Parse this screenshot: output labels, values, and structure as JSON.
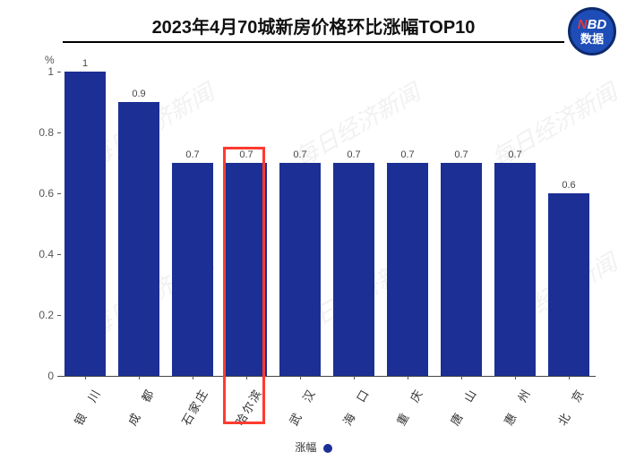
{
  "title": "2023年4月70城新房价格环比涨幅TOP10",
  "title_fontsize": 20,
  "badge": {
    "top_n": "N",
    "top_bd": "BD",
    "bottom": "数据",
    "bg": "#1e4db7",
    "border": "#0d2a6e"
  },
  "watermark_text": "每日经济新闻",
  "chart": {
    "type": "bar",
    "y_unit": "%",
    "ylim": [
      0,
      1
    ],
    "ytick_step": 0.2,
    "yticks": [
      "0",
      "0.2",
      "0.4",
      "0.6",
      "0.8",
      "1"
    ],
    "categories": [
      "银　川",
      "成　都",
      "石家庄",
      "哈尔滨",
      "武　汉",
      "海　口",
      "重　庆",
      "唐　山",
      "惠　州",
      "北　京"
    ],
    "values": [
      1,
      0.9,
      0.7,
      0.7,
      0.7,
      0.7,
      0.7,
      0.7,
      0.7,
      0.6
    ],
    "value_labels": [
      "1",
      "0.9",
      "0.7",
      "0.7",
      "0.7",
      "0.7",
      "0.7",
      "0.7",
      "0.7",
      "0.6"
    ],
    "bar_color": "#1c2f94",
    "background_color": "#ffffff",
    "bar_width_ratio": 0.78,
    "highlight_index": 3,
    "highlight_color": "#ff3b2f",
    "label_fontsize": 11,
    "xlabel_fontsize": 13,
    "xlabel_rotation": -60
  },
  "legend": {
    "label": "涨幅",
    "color": "#1c2f94"
  }
}
